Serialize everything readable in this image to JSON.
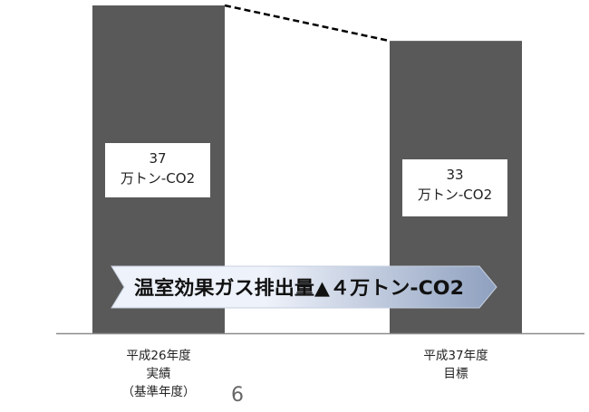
{
  "chart_data": {
    "type": "bar",
    "categories": [
      "平成26年度",
      "平成37年度"
    ],
    "category_labels": [
      [
        "平成26年度",
        "実績",
        "（基準年度）"
      ],
      [
        "平成37年度",
        "目標"
      ]
    ],
    "values": [
      37,
      33
    ],
    "value_labels": [
      [
        "37",
        "万トン-CO2"
      ],
      [
        "33",
        "万トン-CO2"
      ]
    ],
    "unit": "万トン-CO2",
    "ylim": [
      0,
      37
    ],
    "connector": "dashed line between bar tops",
    "annotation": "温室効果ガス排出量▲４万トン-CO2",
    "colors": {
      "bar": "#595959",
      "label_box": "#ffffff",
      "axis": "#8c8c8c",
      "connector": "#000000",
      "arrow_light": "#eef2fa",
      "arrow_dark": "#8ea0bf",
      "arrow_border": "#c5cfdf"
    }
  },
  "page_number": "6"
}
